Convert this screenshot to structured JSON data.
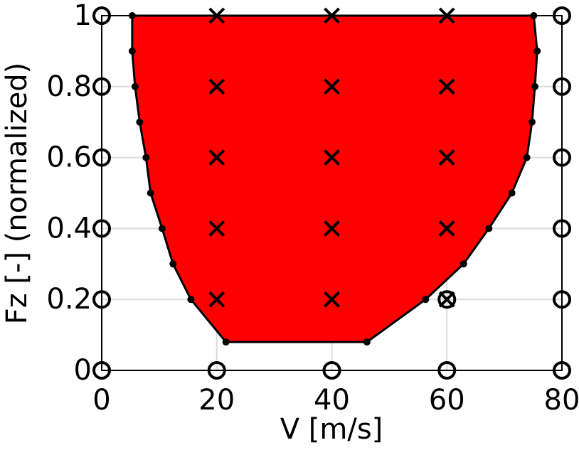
{
  "chart_data": {
    "type": "scatter",
    "xlabel": "V [m/s]",
    "ylabel": "Fz [-] (normalized)",
    "xlim": [
      0,
      80
    ],
    "ylim": [
      0,
      1
    ],
    "xticks": [
      0,
      20,
      40,
      60,
      80
    ],
    "yticks": [
      0,
      0.2,
      0.4,
      0.6,
      0.8,
      1
    ],
    "grid": true,
    "series": [
      {
        "marker": "polygon",
        "color": "#ff0000",
        "x": [
          5.3,
          5.3,
          5.8,
          6.6,
          7.7,
          8.5,
          10.5,
          12.4,
          15.5,
          21.6,
          46.1,
          56.3,
          62.9,
          67.3,
          71.3,
          73.9,
          74.8,
          75.3,
          75.7,
          75.1
        ],
        "y": [
          1,
          0.9,
          0.8,
          0.7,
          0.6,
          0.5,
          0.4,
          0.3,
          0.2,
          0.08,
          0.08,
          0.2,
          0.3,
          0.4,
          0.5,
          0.6,
          0.7,
          0.8,
          0.9,
          1
        ]
      },
      {
        "marker": "o",
        "color": "#000000",
        "x": [
          0,
          0,
          0,
          0,
          0,
          0,
          80,
          80,
          80,
          80,
          80,
          80,
          20,
          40,
          60,
          60
        ],
        "y": [
          0,
          0.2,
          0.4,
          0.6,
          0.8,
          1,
          0,
          0.2,
          0.4,
          0.6,
          0.8,
          1,
          0,
          0,
          0,
          0.2
        ]
      },
      {
        "marker": "x",
        "color": "#000000",
        "x": [
          20,
          40,
          60,
          20,
          40,
          60,
          20,
          40,
          60,
          20,
          40,
          60,
          20,
          40,
          60
        ],
        "y": [
          1,
          1,
          1,
          0.8,
          0.8,
          0.8,
          0.6,
          0.6,
          0.6,
          0.4,
          0.4,
          0.4,
          0.2,
          0.2,
          0.2
        ]
      }
    ]
  }
}
